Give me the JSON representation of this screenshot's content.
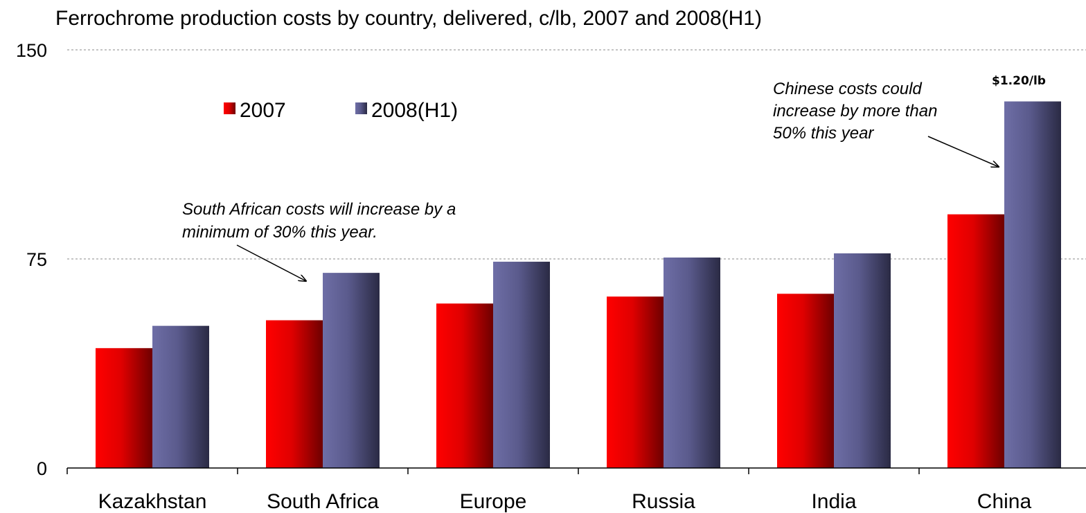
{
  "chart_data": {
    "type": "bar",
    "title": "Ferrochrome production costs by country, delivered, c/lb, 2007 and 2008(H1)",
    "categories": [
      "Kazakhstan",
      "South Africa",
      "Europe",
      "Russia",
      "India",
      "China"
    ],
    "series": [
      {
        "name": "2007",
        "values": [
          43,
          53,
          59,
          61.5,
          62.5,
          91
        ],
        "color": "#e00000"
      },
      {
        "name": "2008(H1)",
        "values": [
          51,
          70,
          74,
          75.5,
          77,
          131.5
        ],
        "color": "#5a5a8c"
      }
    ],
    "ylim": [
      0,
      150
    ],
    "yticks": [
      "0",
      "75",
      "150"
    ],
    "grid": true,
    "legend_position": "top-left",
    "annotations": [
      {
        "id": "sa-note",
        "lines": [
          "South African costs will increase by a",
          "minimum of 30% this year."
        ],
        "target": "South Africa, 2008(H1)"
      },
      {
        "id": "china-note",
        "lines": [
          "Chinese costs could",
          "increase by more than",
          "50% this year"
        ],
        "target": "China, 2008(H1)"
      }
    ],
    "price_label": "$1.20/lb"
  }
}
